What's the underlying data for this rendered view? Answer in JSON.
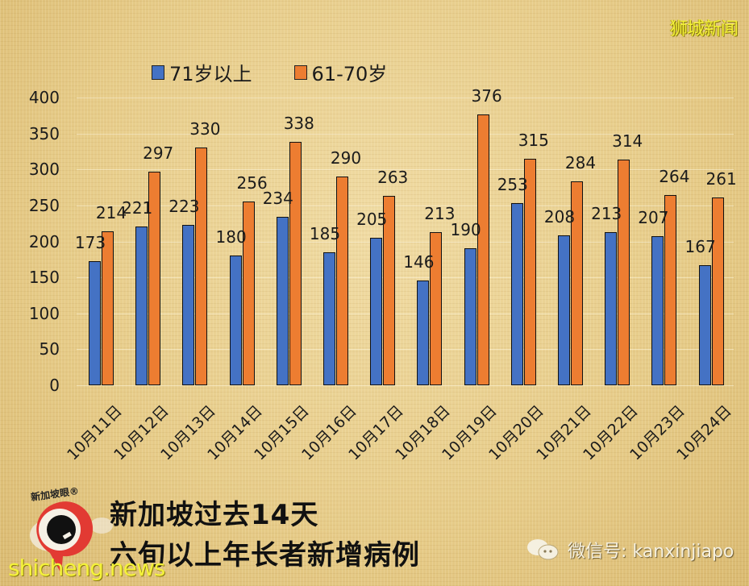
{
  "brand": {
    "watermark": "狮城新闻"
  },
  "legend": [
    {
      "label": "71岁以上",
      "color": "#4472c4"
    },
    {
      "label": "61-70岁",
      "color": "#ed7d31"
    }
  ],
  "footer": {
    "title_line1": "新加坡过去14天",
    "title_line2": "六旬以上年长者新增病例",
    "logo_text": "新加坡眼®",
    "site": "shicheng.news",
    "wechat": "微信号: kanxinjiapo"
  },
  "chart_data": {
    "type": "bar",
    "title": "新加坡过去14天 六旬以上年长者新增病例",
    "xlabel": "",
    "ylabel": "",
    "ylim": [
      0,
      400
    ],
    "yticks": [
      0,
      50,
      100,
      150,
      200,
      250,
      300,
      350,
      400
    ],
    "grid": true,
    "legend_position": "top",
    "categories": [
      "10月11日",
      "10月12日",
      "10月13日",
      "10月14日",
      "10月15日",
      "10月16日",
      "10月17日",
      "10月18日",
      "10月19日",
      "10月20日",
      "10月21日",
      "10月22日",
      "10月23日",
      "10月24日"
    ],
    "series": [
      {
        "name": "71岁以上",
        "color": "#4472c4",
        "values": [
          173,
          221,
          223,
          180,
          234,
          185,
          205,
          146,
          190,
          253,
          208,
          213,
          207,
          167
        ]
      },
      {
        "name": "61-70岁",
        "color": "#ed7d31",
        "values": [
          214,
          297,
          330,
          256,
          338,
          290,
          263,
          213,
          376,
          315,
          284,
          314,
          264,
          261
        ]
      }
    ]
  }
}
